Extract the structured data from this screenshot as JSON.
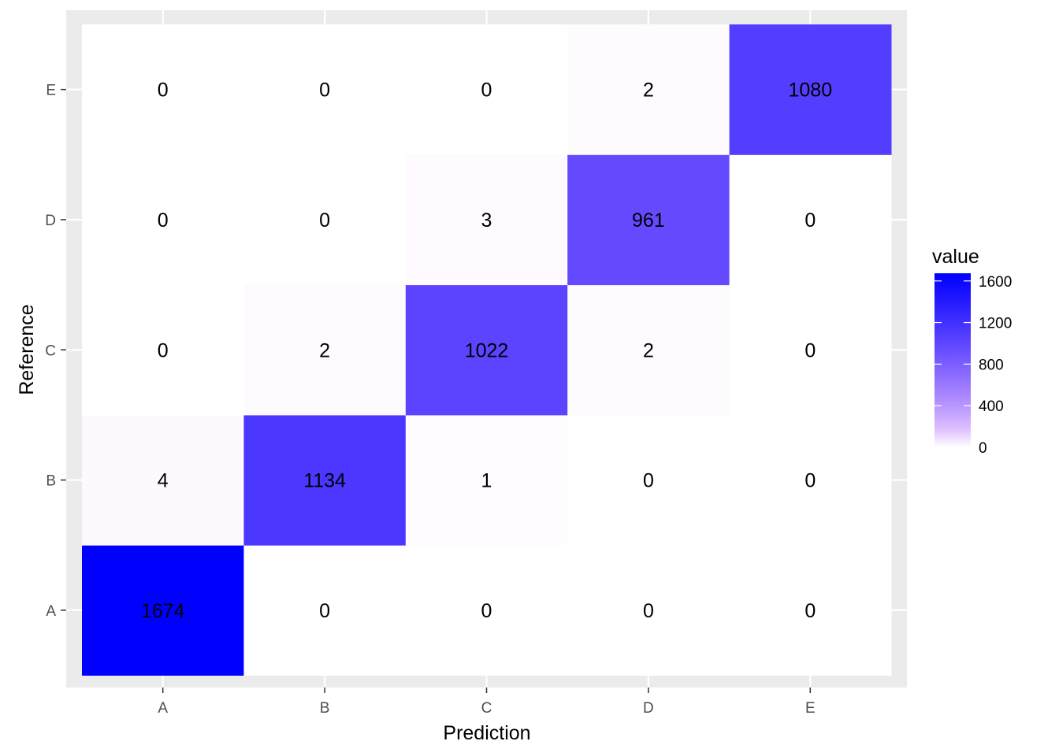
{
  "chart_data": {
    "type": "heatmap",
    "title": "",
    "xlabel": "Prediction",
    "ylabel": "Reference",
    "x_categories": [
      "A",
      "B",
      "C",
      "D",
      "E"
    ],
    "y_categories": [
      "A",
      "B",
      "C",
      "D",
      "E"
    ],
    "cells": [
      {
        "x": "A",
        "y": "A",
        "value": 1674
      },
      {
        "x": "B",
        "y": "A",
        "value": 0
      },
      {
        "x": "C",
        "y": "A",
        "value": 0
      },
      {
        "x": "D",
        "y": "A",
        "value": 0
      },
      {
        "x": "E",
        "y": "A",
        "value": 0
      },
      {
        "x": "A",
        "y": "B",
        "value": 4
      },
      {
        "x": "B",
        "y": "B",
        "value": 1134
      },
      {
        "x": "C",
        "y": "B",
        "value": 1
      },
      {
        "x": "D",
        "y": "B",
        "value": 0
      },
      {
        "x": "E",
        "y": "B",
        "value": 0
      },
      {
        "x": "A",
        "y": "C",
        "value": 0
      },
      {
        "x": "B",
        "y": "C",
        "value": 2
      },
      {
        "x": "C",
        "y": "C",
        "value": 1022
      },
      {
        "x": "D",
        "y": "C",
        "value": 2
      },
      {
        "x": "E",
        "y": "C",
        "value": 0
      },
      {
        "x": "A",
        "y": "D",
        "value": 0
      },
      {
        "x": "B",
        "y": "D",
        "value": 0
      },
      {
        "x": "C",
        "y": "D",
        "value": 3
      },
      {
        "x": "D",
        "y": "D",
        "value": 961
      },
      {
        "x": "E",
        "y": "D",
        "value": 0
      },
      {
        "x": "A",
        "y": "E",
        "value": 0
      },
      {
        "x": "B",
        "y": "E",
        "value": 0
      },
      {
        "x": "C",
        "y": "E",
        "value": 0
      },
      {
        "x": "D",
        "y": "E",
        "value": 2
      },
      {
        "x": "E",
        "y": "E",
        "value": 1080
      }
    ],
    "legend": {
      "title": "value",
      "ticks": [
        0,
        400,
        800,
        1200,
        1600
      ],
      "range": [
        0,
        1674
      ],
      "placement": "right"
    },
    "color_scale": {
      "low": "#ffffff",
      "high": "#0000ff"
    },
    "colors": {
      "panel_background": "#ebebeb",
      "grid": "#ffffff",
      "tick_text": "#4d4d4d",
      "tick_mark": "#333333"
    },
    "grid": true
  }
}
